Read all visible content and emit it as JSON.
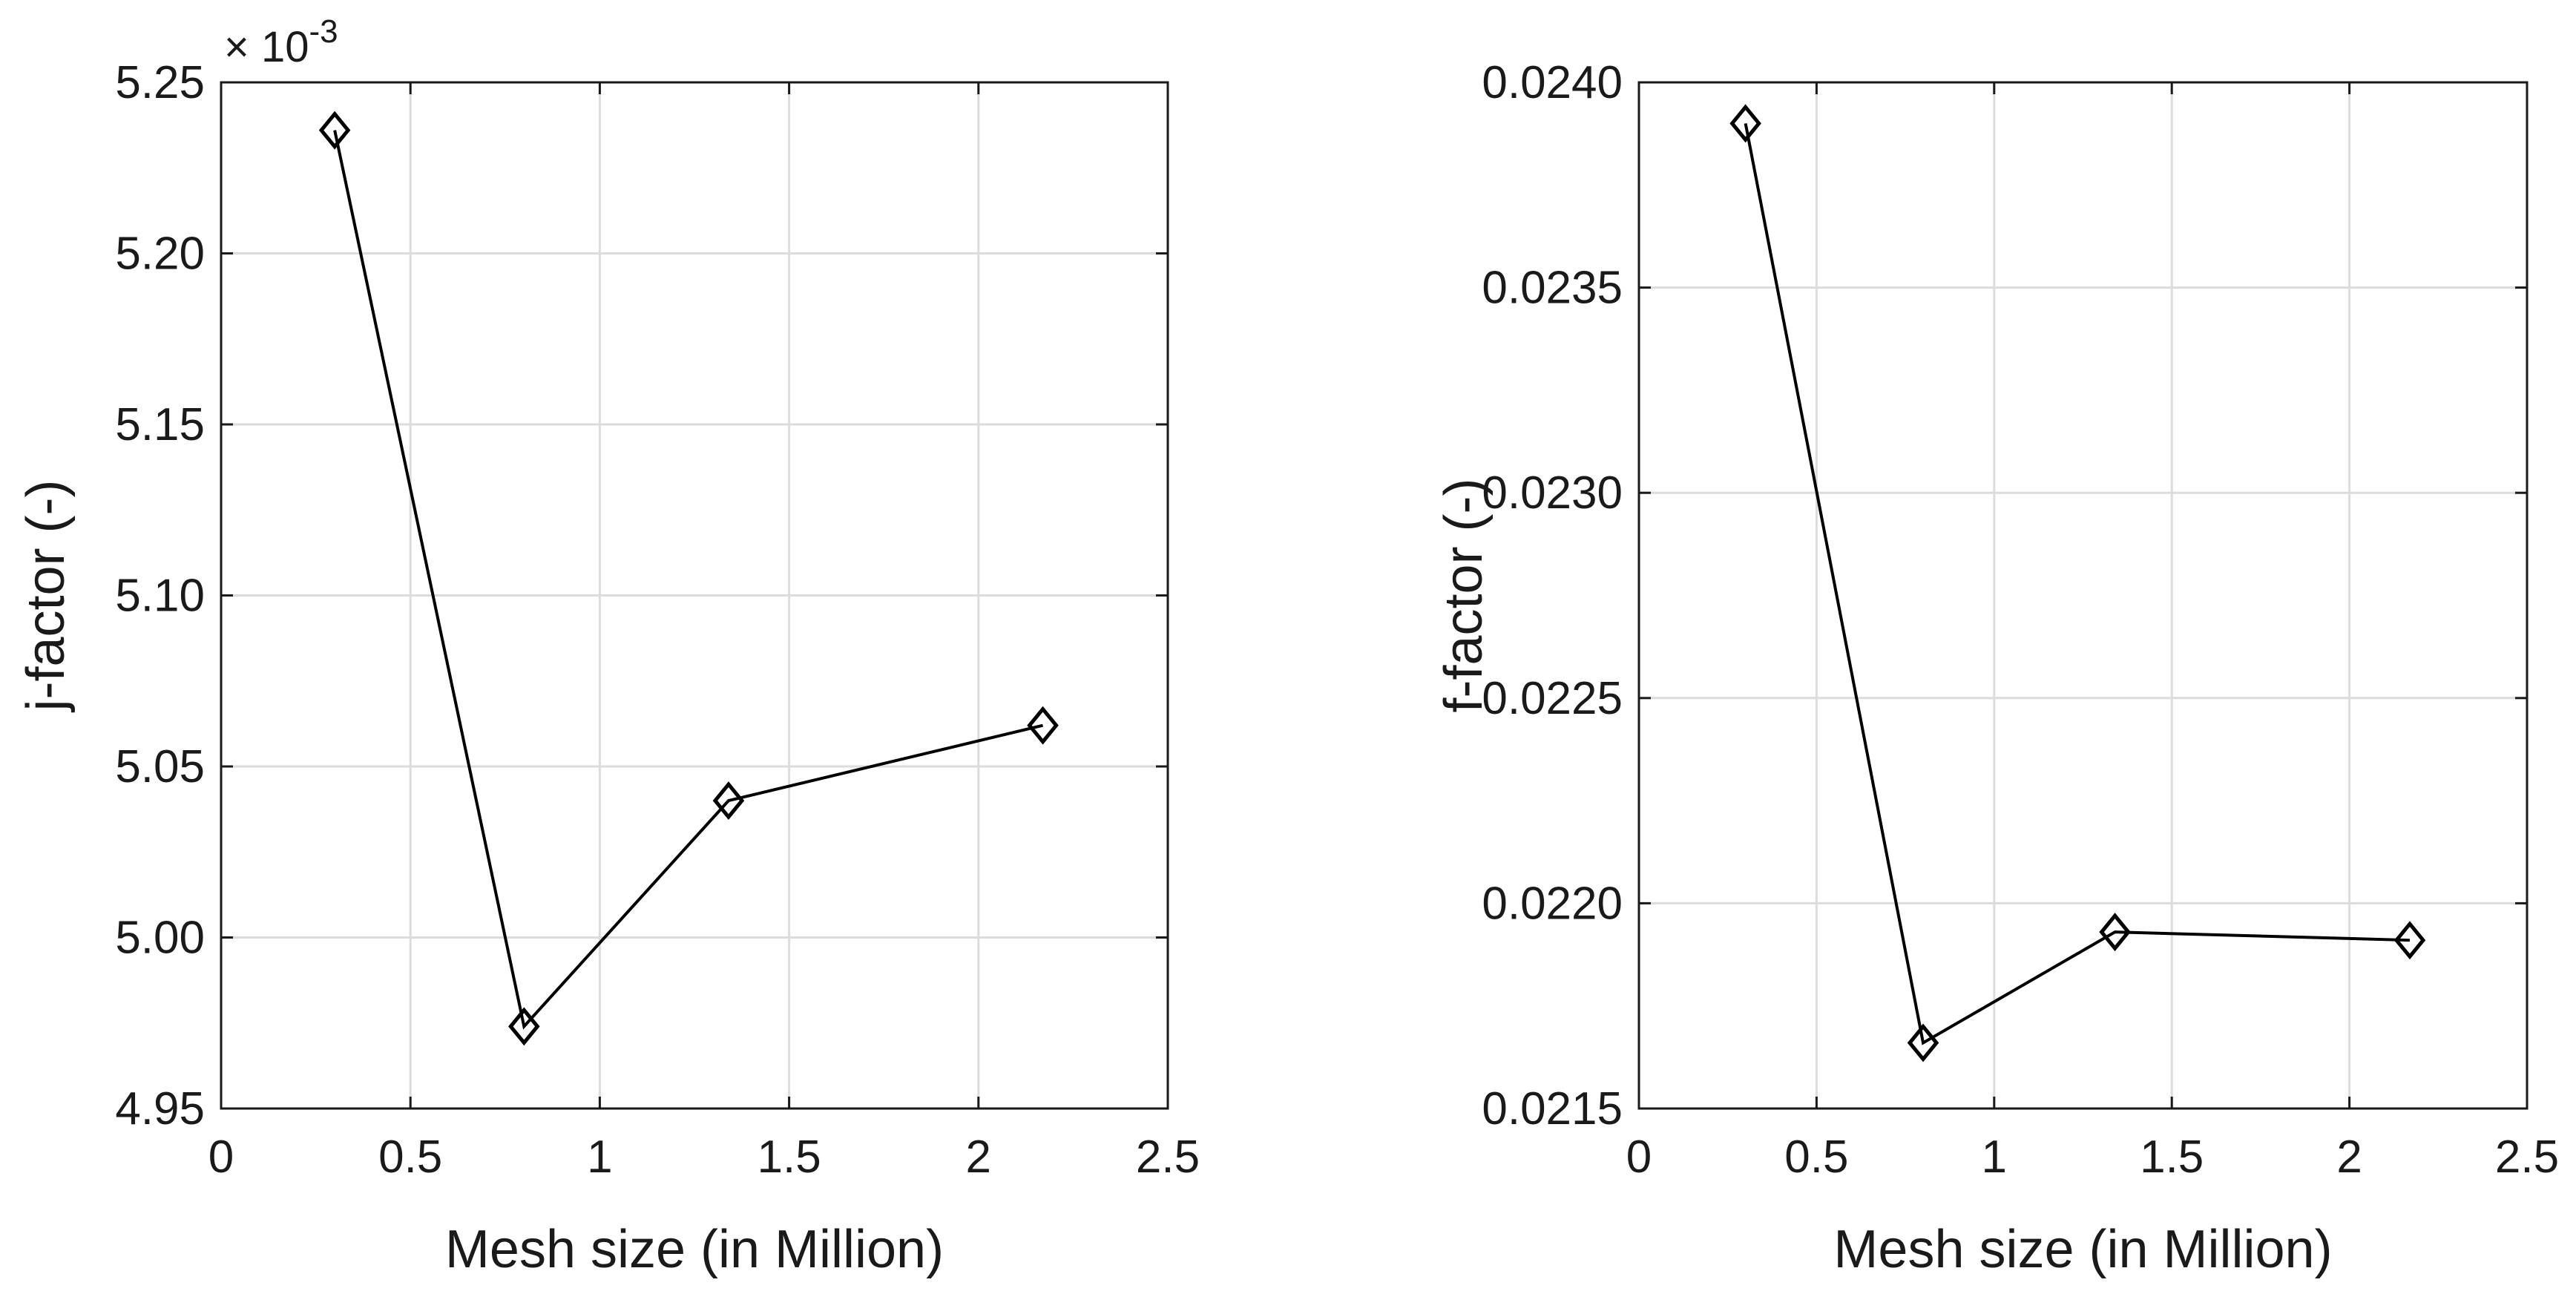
{
  "chart_data": [
    {
      "type": "line",
      "marker": "diamond",
      "title": "",
      "xlabel": "Mesh size (in Million)",
      "ylabel": "j-factor (-)",
      "xlim": [
        0,
        2.5
      ],
      "ylim": [
        4.95,
        5.25
      ],
      "xticks": [
        0,
        0.5,
        1,
        1.5,
        2,
        2.5
      ],
      "xtick_labels": [
        "0",
        "0.5",
        "1",
        "1.5",
        "2",
        "2.5"
      ],
      "yticks": [
        4.95,
        5.0,
        5.05,
        5.1,
        5.15,
        5.2,
        5.25
      ],
      "ytick_labels": [
        "4.95",
        "5.00",
        "5.05",
        "5.10",
        "5.15",
        "5.20",
        "5.25"
      ],
      "y_exponent": {
        "base": "× 10",
        "power": "-3"
      },
      "grid": true,
      "x": [
        0.3,
        0.8,
        1.34,
        2.17
      ],
      "y": [
        5.236,
        4.974,
        5.04,
        5.062
      ]
    },
    {
      "type": "line",
      "marker": "diamond",
      "title": "",
      "xlabel": "Mesh size (in Million)",
      "ylabel": "f-factor (-)",
      "xlim": [
        0,
        2.5
      ],
      "ylim": [
        0.0215,
        0.024
      ],
      "xticks": [
        0,
        0.5,
        1,
        1.5,
        2,
        2.5
      ],
      "xtick_labels": [
        "0",
        "0.5",
        "1",
        "1.5",
        "2",
        "2.5"
      ],
      "yticks": [
        0.0215,
        0.022,
        0.0225,
        0.023,
        0.0235,
        0.024
      ],
      "ytick_labels": [
        "0.0215",
        "0.0220",
        "0.0225",
        "0.0230",
        "0.0235",
        "0.0240"
      ],
      "grid": true,
      "x": [
        0.3,
        0.8,
        1.34,
        2.17
      ],
      "y": [
        0.0239,
        0.02166,
        0.02193,
        0.02191
      ]
    }
  ],
  "colors": {
    "line": "#000000",
    "grid": "#dcdcdc",
    "axis": "#1a1a1a"
  }
}
